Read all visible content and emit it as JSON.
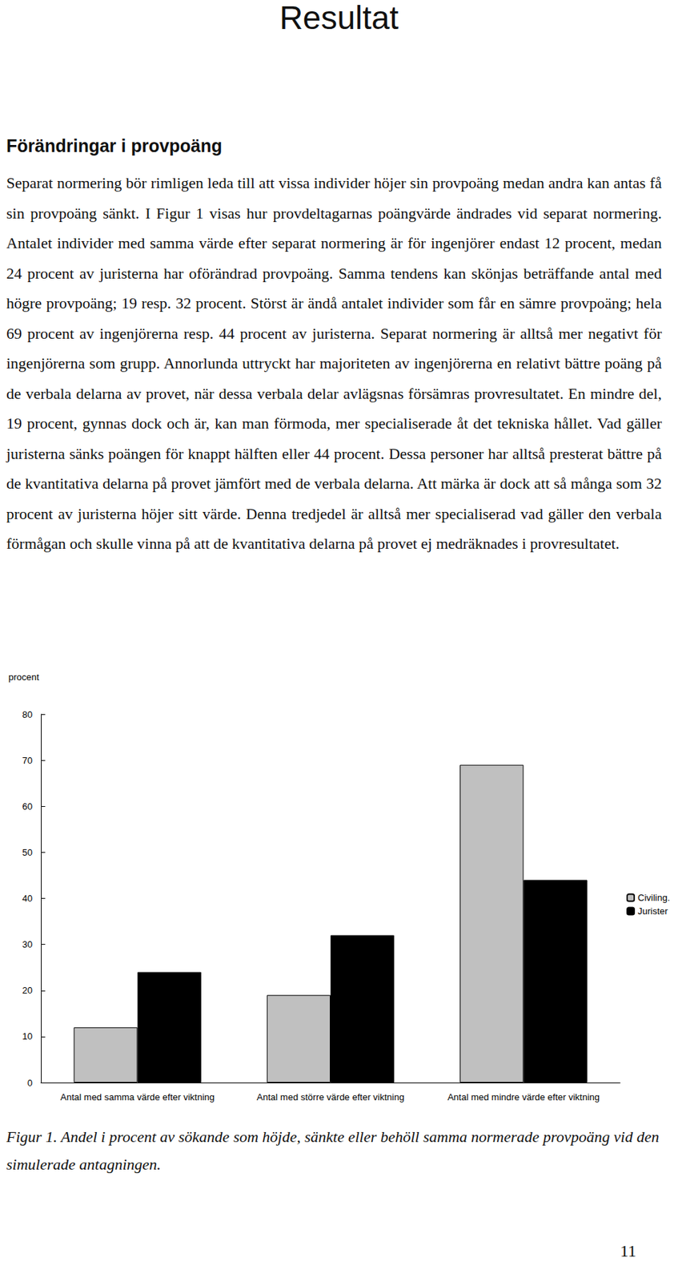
{
  "document": {
    "title": "Resultat",
    "section": {
      "heading": "Förändringar i provpoäng",
      "paragraph": "Separat normering bör rimligen leda till att vissa individer höjer sin provpoäng medan andra kan antas få sin provpoäng sänkt. I Figur 1 visas hur provdeltagarnas poängvärde ändrades vid separat normering. Antalet individer med samma värde efter separat normering är för ingenjörer endast 12 procent, medan 24 procent av juristerna har oförändrad provpoäng. Samma tendens kan skönjas beträffande antal med högre provpoäng; 19 resp. 32 procent. Störst är ändå antalet individer som får en sämre provpoäng; hela 69 procent av ingenjörerna resp. 44 procent av juristerna. Separat normering är alltså mer negativt för ingenjörerna som grupp. Annorlunda uttryckt har majoriteten av ingenjörerna en relativt bättre poäng på de verbala delarna av provet, när dessa verbala delar avlägsnas försämras provresultatet. En mindre del, 19 procent, gynnas dock och är, kan man förmoda, mer specialiserade åt det tekniska hållet. Vad gäller juristerna sänks poängen för knappt hälften eller 44 procent. Dessa personer har alltså presterat bättre på de kvantitativa delarna på provet jämfört med de verbala delarna. Att märka är dock att så många som 32 procent av juristerna höjer sitt värde. Denna tredjedel är alltså mer specialiserad vad gäller den verbala förmågan och skulle vinna på att de kvantitativa delarna på provet ej medräknades i provresultatet."
    },
    "caption": "Figur 1. Andel i procent av sökande som höjde, sänkte eller behöll samma normerade provpoäng vid den simulerade antagningen.",
    "page_number": "11"
  },
  "chart_data": {
    "type": "bar",
    "ylabel": "procent",
    "categories": [
      "Antal med samma värde efter viktning",
      "Antal med större värde efter viktning",
      "Antal med mindre värde efter viktning"
    ],
    "series": [
      {
        "name": "Civiling.",
        "color": "#c0c0c0",
        "values": [
          12,
          19,
          69
        ]
      },
      {
        "name": "Jurister",
        "color": "#000000",
        "values": [
          24,
          32,
          44
        ]
      }
    ],
    "ylim": [
      0,
      80
    ],
    "yticks": [
      0,
      10,
      20,
      30,
      40,
      50,
      60,
      70,
      80
    ],
    "grid": false,
    "legend": "right"
  }
}
